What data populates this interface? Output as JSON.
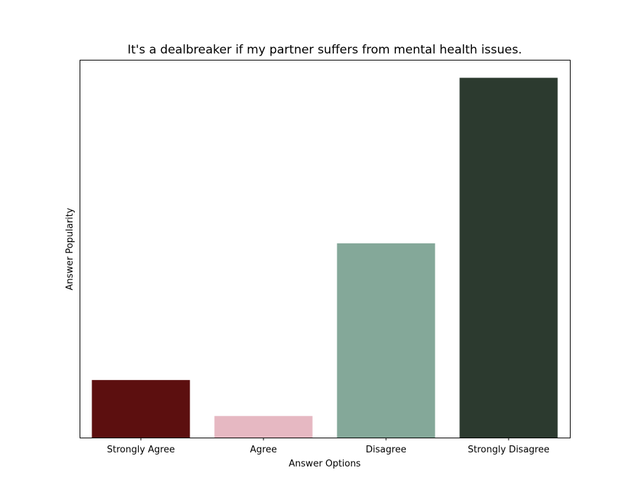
{
  "chart_data": {
    "type": "bar",
    "title": "It's a dealbreaker if my partner suffers from mental health issues.",
    "xlabel": "Answer Options",
    "ylabel": "Answer Popularity",
    "categories": [
      "Strongly Agree",
      "Agree",
      "Disagree",
      "Strongly Disagree"
    ],
    "values": [
      16,
      6,
      54,
      100
    ],
    "ylim": [
      0,
      105
    ],
    "colors": [
      "#5c0f0f",
      "#e6b8c2",
      "#84a899",
      "#2c3a2f"
    ],
    "y_ticks_shown": false,
    "grid": false,
    "legend": "none"
  }
}
